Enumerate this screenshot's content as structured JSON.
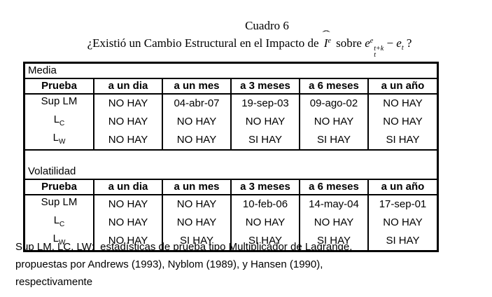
{
  "title": "Cuadro 6",
  "subtitle": {
    "before": "¿Existió un Cambio Estructural en el Impacto de ",
    "i_hat": "ˆ",
    "i_base": "I",
    "i_sup": "e",
    "mid": " sobre ",
    "e1_base": "e",
    "e1_sup": "e",
    "stack_top": "t+k",
    "stack_bottom": "t",
    "minus": " − ",
    "e2_base": "e",
    "e2_sub": "t",
    "after": " ?"
  },
  "table": {
    "sections": [
      {
        "label": "Media",
        "columns": [
          "Prueba",
          "a un dia",
          "a un mes",
          "a 3 meses",
          "a 6 meses",
          "a un año"
        ],
        "rows": [
          {
            "name": "Sup LM",
            "sub": "",
            "cells": [
              "NO HAY",
              "04-abr-07",
              "19-sep-03",
              "09-ago-02",
              "NO HAY"
            ]
          },
          {
            "name": "L",
            "sub": "C",
            "cells": [
              "NO HAY",
              "NO HAY",
              "NO HAY",
              "NO HAY",
              "NO HAY"
            ]
          },
          {
            "name": "L",
            "sub": "W",
            "cells": [
              "NO HAY",
              "NO HAY",
              "SI HAY",
              "SI HAY",
              "SI HAY"
            ]
          }
        ]
      },
      {
        "label": "Volatilidad",
        "columns": [
          "Prueba",
          "a un dia",
          "a un mes",
          "a 3 meses",
          "a 6 meses",
          "a un año"
        ],
        "rows": [
          {
            "name": "Sup LM",
            "sub": "",
            "cells": [
              "NO HAY",
              "NO HAY",
              "10-feb-06",
              "14-may-04",
              "17-sep-01"
            ]
          },
          {
            "name": "L",
            "sub": "C",
            "cells": [
              "NO HAY",
              "NO HAY",
              "NO HAY",
              "NO HAY",
              "NO HAY"
            ]
          },
          {
            "name": "L",
            "sub": "W",
            "cells": [
              "NO HAY",
              "SI HAY",
              "SI HAY",
              "SI HAY",
              "SI HAY"
            ]
          }
        ]
      }
    ]
  },
  "footnote": {
    "line1": "Sup LM, LC, LW:  estadísticas de prueba tipo Multiplicador de Lagrange,",
    "line2": "propuestas por Andrews (1993), Nyblom (1989), y Hansen (1990),",
    "line3": "respectivamente"
  }
}
